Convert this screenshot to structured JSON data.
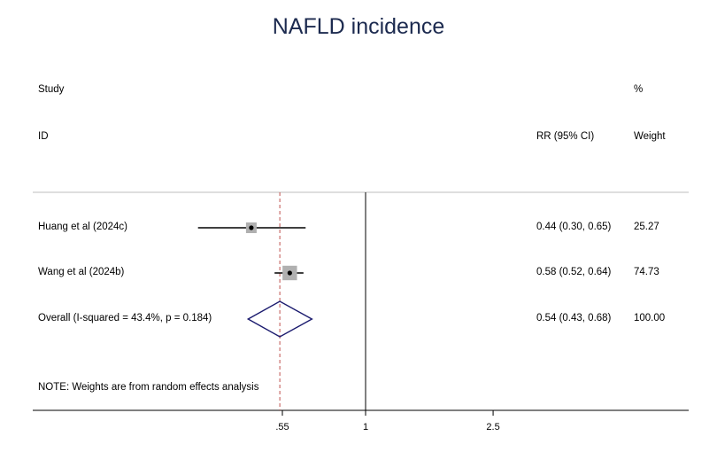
{
  "title": "NAFLD incidence",
  "headers": {
    "study": "Study",
    "id": "ID",
    "rr": "RR (95% CI)",
    "pct": "%",
    "weight": "Weight"
  },
  "note": "NOTE: Weights are from random effects analysis",
  "colors": {
    "title": "#1c2a4f",
    "diamond": "#1a1a6e",
    "overall_line": "#c0504d",
    "box": "#b0b0b0"
  },
  "chart_data": {
    "type": "forest",
    "title": "NAFLD incidence",
    "measure": "RR (95% CI)",
    "null_line": 1,
    "overall_line": 0.54,
    "xlim": [
      0.3,
      3.3
    ],
    "xticks": [
      {
        "value": 0.55,
        "label": ".55"
      },
      {
        "value": 1,
        "label": "1"
      },
      {
        "value": 2.5,
        "label": "2.5"
      }
    ],
    "studies": [
      {
        "id": "Huang et al (2024c)",
        "rr": 0.44,
        "lower": 0.3,
        "upper": 0.65,
        "weight": 25.27,
        "ci_text": "0.44 (0.30, 0.65)",
        "weight_text": "25.27"
      },
      {
        "id": "Wang et al (2024b)",
        "rr": 0.58,
        "lower": 0.52,
        "upper": 0.64,
        "weight": 74.73,
        "ci_text": "0.58 (0.52, 0.64)",
        "weight_text": "74.73"
      }
    ],
    "overall": {
      "label": "Overall  (I-squared = 43.4%, p = 0.184)",
      "rr": 0.54,
      "lower": 0.43,
      "upper": 0.68,
      "weight": 100.0,
      "ci_text": "0.54 (0.43, 0.68)",
      "weight_text": "100.00"
    }
  }
}
